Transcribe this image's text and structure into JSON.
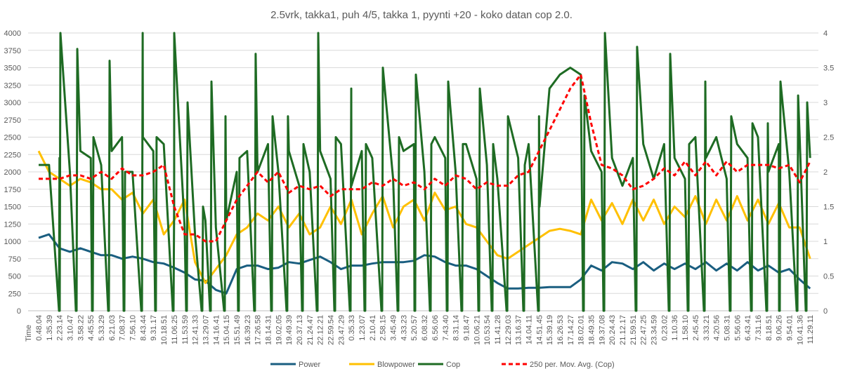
{
  "chart_data": {
    "type": "line",
    "title": "2.5vrk, takka1, puh 4/5, takka 1, pyynti +20 - koko datan cop 2.0.",
    "xlabel": "Time",
    "ylim": [
      0,
      4000
    ],
    "y2lim": [
      0,
      4
    ],
    "yticks": [
      "0",
      "250",
      "500",
      "750",
      "1000",
      "1250",
      "1500",
      "1750",
      "2000",
      "2250",
      "2500",
      "2750",
      "3000",
      "3250",
      "3500",
      "3750",
      "4000"
    ],
    "y2ticks": [
      "0",
      "0.5",
      "1",
      "1.5",
      "2",
      "2.5",
      "3",
      "3.5",
      "4"
    ],
    "grid": true,
    "legend_position": "bottom",
    "categories": [
      "0.48.04",
      "1.35.39",
      "2.23.14",
      "3.10.47",
      "3.58.22",
      "4.45.55",
      "5.33.29",
      "6.21.03",
      "7.08.37",
      "7.56.10",
      "8.43.44",
      "9.31.17",
      "10.18.51",
      "11.06.25",
      "11.53.59",
      "12.41.33",
      "13.29.07",
      "14.16.41",
      "15.04.15",
      "15.51.49",
      "16.39.23",
      "17.26.58",
      "18.14.31",
      "19.02.05",
      "19.49.39",
      "20.37.13",
      "21.24.47",
      "22.12.21",
      "22.59.54",
      "23.47.29",
      "0.35.33",
      "1.23.07",
      "2.10.41",
      "2.58.15",
      "3.45.49",
      "4.33.23",
      "5.20.57",
      "6.08.32",
      "6.56.06",
      "7.43.40",
      "8.31.14",
      "9.18.47",
      "10.06.21",
      "10.53.54",
      "11.41.28",
      "12.29.03",
      "13.16.37",
      "14.04.11",
      "14.51.45",
      "15.39.19",
      "16.26.53",
      "17.14.27",
      "18.02.01",
      "18.49.35",
      "19.37.08",
      "20.24.43",
      "21.12.17",
      "21.59.51",
      "22.47.25",
      "23.34.59",
      "0.23.02",
      "1.10.36",
      "1.58.10",
      "2.45.45",
      "3.33.21",
      "4.20.56",
      "5.08.31",
      "5.56.06",
      "6.43.41",
      "7.31.16",
      "8.18.51",
      "9.06.26",
      "9.54.01",
      "10.41.36",
      "11.29.11"
    ],
    "series": [
      {
        "name": "Power",
        "axis": "left",
        "color": "#1a5e80",
        "dash": false,
        "values": [
          1050,
          1100,
          900,
          850,
          900,
          850,
          800,
          800,
          750,
          780,
          750,
          700,
          680,
          620,
          550,
          450,
          430,
          300,
          250,
          600,
          650,
          650,
          600,
          620,
          700,
          680,
          730,
          780,
          700,
          600,
          650,
          650,
          680,
          700,
          700,
          700,
          720,
          800,
          780,
          700,
          650,
          650,
          600,
          500,
          400,
          320,
          320,
          330,
          330,
          340,
          340,
          340,
          450,
          650,
          580,
          700,
          680,
          600,
          700,
          580,
          680,
          600,
          680,
          600,
          700,
          580,
          680,
          580,
          700,
          580,
          650,
          550,
          600,
          450,
          320
        ]
      },
      {
        "name": "Blowpower",
        "axis": "left",
        "color": "#ffc000",
        "dash": false,
        "values": [
          2300,
          2000,
          1900,
          1800,
          1900,
          1850,
          1750,
          1750,
          1600,
          1700,
          1400,
          1600,
          1100,
          1300,
          1600,
          700,
          400,
          600,
          800,
          1100,
          1200,
          1400,
          1300,
          1500,
          1200,
          1400,
          1100,
          1200,
          1500,
          1250,
          1600,
          1100,
          1400,
          1650,
          1200,
          1500,
          1600,
          1300,
          1700,
          1450,
          1500,
          1250,
          1200,
          1000,
          800,
          750,
          850,
          950,
          1050,
          1150,
          1180,
          1150,
          1100,
          1600,
          1300,
          1550,
          1250,
          1600,
          1300,
          1600,
          1250,
          1500,
          1350,
          1650,
          1250,
          1600,
          1300,
          1650,
          1300,
          1600,
          1250,
          1550,
          1200,
          1200,
          750
        ]
      },
      {
        "name": "Cop",
        "axis": "right",
        "color": "#1e6b23",
        "dash": false,
        "values": [
          2.1,
          2.1,
          2.2,
          2.0,
          2.3,
          2.2,
          2.1,
          2.3,
          2.5,
          2.0,
          2.5,
          2.3,
          2.4,
          1.5,
          1.2,
          1.1,
          1.3,
          1.2,
          1.3,
          2.0,
          2.3,
          2.0,
          2.4,
          2.0,
          2.3,
          1.8,
          2.0,
          2.3,
          1.9,
          2.4,
          1.8,
          2.3,
          2.2,
          2.4,
          1.9,
          2.3,
          2.4,
          2.0,
          2.5,
          2.2,
          2.0,
          2.4,
          1.9,
          2.1,
          1.9,
          2.1,
          2.2,
          2.4,
          2.8,
          3.2,
          3.4,
          3.5,
          3.4,
          2.3,
          2.0,
          2.2,
          1.8,
          2.2,
          2.4,
          1.9,
          2.4,
          2.2,
          1.9,
          2.5,
          2.2,
          2.5,
          1.9,
          2.4,
          2.2,
          2.5,
          2.0,
          2.4,
          2.0,
          2.5,
          2.2
        ],
        "spikes": [
          {
            "at": 2.02,
            "peak": 4
          },
          {
            "at": 3.64,
            "peak": 3.77
          },
          {
            "at": 5.19,
            "peak": 2.5
          },
          {
            "at": 6.74,
            "peak": 3.6
          },
          {
            "at": 8.22,
            "peak": 2.0
          },
          {
            "at": 9.91,
            "peak": 4
          },
          {
            "at": 11.25,
            "peak": 2.5
          },
          {
            "at": 12.94,
            "peak": 4
          },
          {
            "at": 14.22,
            "peak": 3.0
          },
          {
            "at": 15.7,
            "peak": 1.5
          },
          {
            "at": 16.51,
            "peak": 3.3
          },
          {
            "at": 17.86,
            "peak": 2.8
          },
          {
            "at": 19.2,
            "peak": 2.2
          },
          {
            "at": 20.75,
            "peak": 3.7
          },
          {
            "at": 22.37,
            "peak": 2.8
          },
          {
            "at": 23.85,
            "peak": 2.8
          },
          {
            "at": 25.34,
            "peak": 2.4
          },
          {
            "at": 26.75,
            "peak": 4
          },
          {
            "at": 28.44,
            "peak": 2.5
          },
          {
            "at": 29.92,
            "peak": 3.2
          },
          {
            "at": 31.33,
            "peak": 2.4
          },
          {
            "at": 32.95,
            "peak": 3.5
          },
          {
            "at": 34.5,
            "peak": 2.5
          },
          {
            "at": 36.12,
            "peak": 3.4
          },
          {
            "at": 37.6,
            "peak": 2.4
          },
          {
            "at": 39.22,
            "peak": 3.3
          },
          {
            "at": 40.63,
            "peak": 2.4
          },
          {
            "at": 42.25,
            "peak": 3.2
          },
          {
            "at": 43.53,
            "peak": 2.4
          },
          {
            "at": 44.95,
            "peak": 2.8
          },
          {
            "at": 46.56,
            "peak": 2.1
          },
          {
            "at": 47.98,
            "peak": 1.5
          },
          {
            "at": 52.29,
            "peak": 3.1
          },
          {
            "at": 54.25,
            "peak": 4
          },
          {
            "at": 57.34,
            "peak": 3.8
          },
          {
            "at": 60.51,
            "peak": 3.7
          },
          {
            "at": 62.33,
            "peak": 2.4
          },
          {
            "at": 63.88,
            "peak": 3.3
          },
          {
            "at": 66.37,
            "peak": 2.8
          },
          {
            "at": 68.4,
            "peak": 2.7
          },
          {
            "at": 69.88,
            "peak": 2.7
          },
          {
            "at": 71.09,
            "peak": 3.3
          },
          {
            "at": 72.78,
            "peak": 3.1
          },
          {
            "at": 73.65,
            "peak": 3.0
          }
        ]
      },
      {
        "name": "250 per. Mov. Avg. (Cop)",
        "axis": "right",
        "color": "#ff0000",
        "dash": true,
        "values": [
          1.9,
          1.9,
          1.9,
          1.95,
          1.95,
          1.9,
          2.0,
          1.9,
          2.05,
          1.95,
          1.95,
          2.0,
          2.1,
          1.5,
          1.1,
          1.1,
          1.0,
          1.0,
          1.3,
          1.6,
          1.8,
          2.0,
          1.85,
          2.0,
          1.7,
          1.8,
          1.75,
          1.8,
          1.65,
          1.75,
          1.75,
          1.75,
          1.85,
          1.8,
          1.9,
          1.8,
          1.85,
          1.75,
          1.9,
          1.8,
          1.95,
          1.9,
          1.75,
          1.85,
          1.8,
          1.8,
          1.95,
          2.0,
          2.3,
          2.6,
          2.9,
          3.2,
          3.4,
          2.7,
          2.1,
          2.05,
          1.95,
          1.75,
          1.8,
          1.9,
          2.05,
          1.95,
          2.15,
          1.95,
          2.15,
          1.95,
          2.15,
          2.0,
          2.1,
          2.1,
          2.1,
          2.05,
          2.1,
          1.85,
          2.15
        ]
      }
    ]
  }
}
